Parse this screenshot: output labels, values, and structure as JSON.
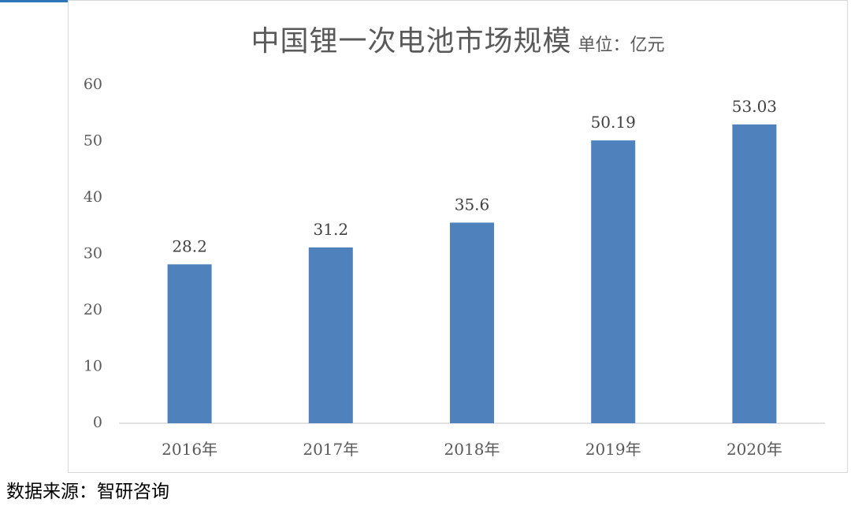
{
  "chart_data": {
    "type": "bar",
    "title": "中国锂一次电池市场规模",
    "unit_label": "单位：亿元",
    "categories": [
      "2016年",
      "2017年",
      "2018年",
      "2019年",
      "2020年"
    ],
    "values": [
      28.2,
      31.2,
      35.6,
      50.19,
      53.03
    ],
    "data_labels": [
      "28.2",
      "31.2",
      "35.6",
      "50.19",
      "53.03"
    ],
    "yticks": [
      "0",
      "10",
      "20",
      "30",
      "40",
      "50",
      "60"
    ],
    "ylim": [
      0,
      60
    ],
    "grid": false,
    "bar_color": "#4f81bd"
  },
  "source_note": "数据来源：智研咨询"
}
